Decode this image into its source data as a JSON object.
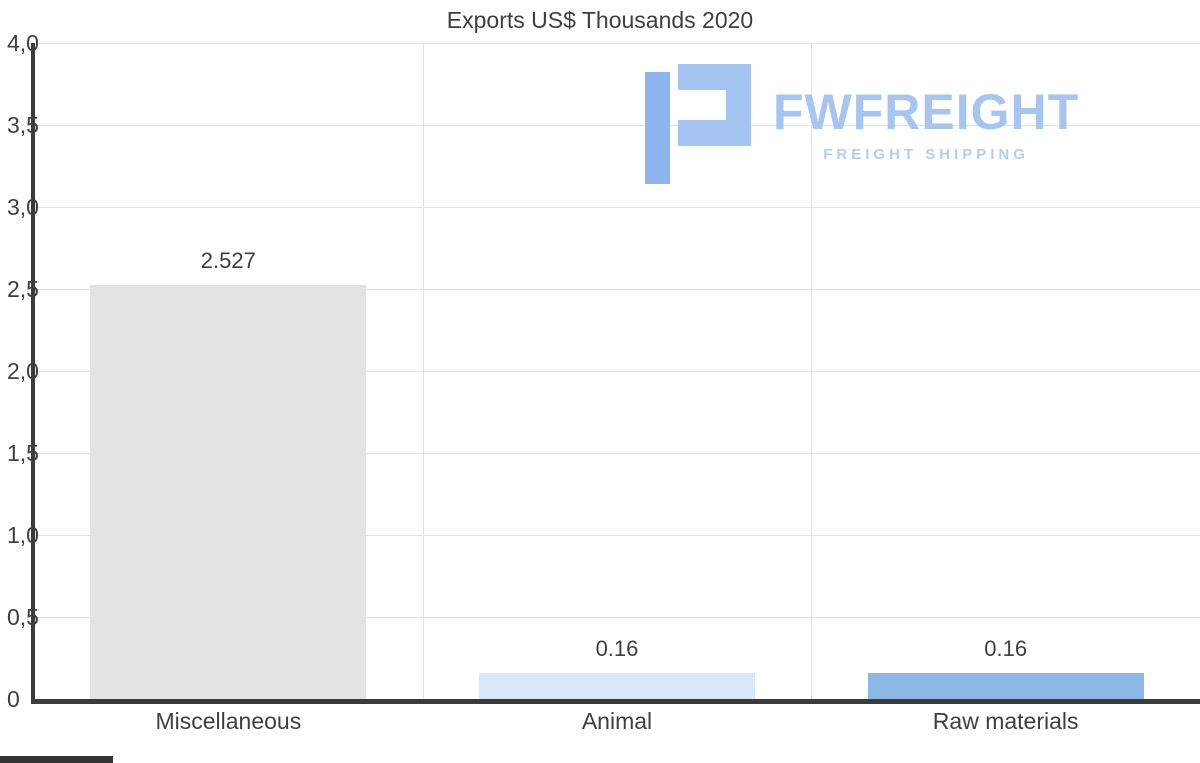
{
  "title": "Exports US$ Thousands 2020",
  "watermark": {
    "brand": "FWFREIGHT",
    "tagline": "FREIGHT SHIPPING",
    "brand_color": "#a7c5f1",
    "icon_color_light": "#a3c4f1",
    "icon_color_dark": "#8db5ed"
  },
  "chart_data": {
    "type": "bar",
    "title": "Exports US$ Thousands 2020",
    "categories": [
      "Miscellaneous",
      "Animal",
      "Raw materials"
    ],
    "values": [
      2.527,
      0.16,
      0.16
    ],
    "value_labels": [
      "2.527",
      "0.16",
      "0.16"
    ],
    "bar_colors": [
      "#e3e3e3",
      "#d9e8fb",
      "#8cb8e8"
    ],
    "bar_border_colors": [
      "#d2d2d2",
      "#cadef7",
      "#7fadе2"
    ],
    "xlabel": "",
    "ylabel": "",
    "ylim": [
      0,
      4
    ],
    "ytick_step": 0.5,
    "ytick_labels": [
      "0",
      "0,5",
      "1,0",
      "1,5",
      "2,0",
      "2,5",
      "3,0",
      "3,5",
      "4,0"
    ],
    "grid": true,
    "legend": false,
    "decimal_separator": ","
  },
  "colors": {
    "axis": "#3b3b3b",
    "grid": "#e3e3e3",
    "text": "#3f3f3f"
  }
}
